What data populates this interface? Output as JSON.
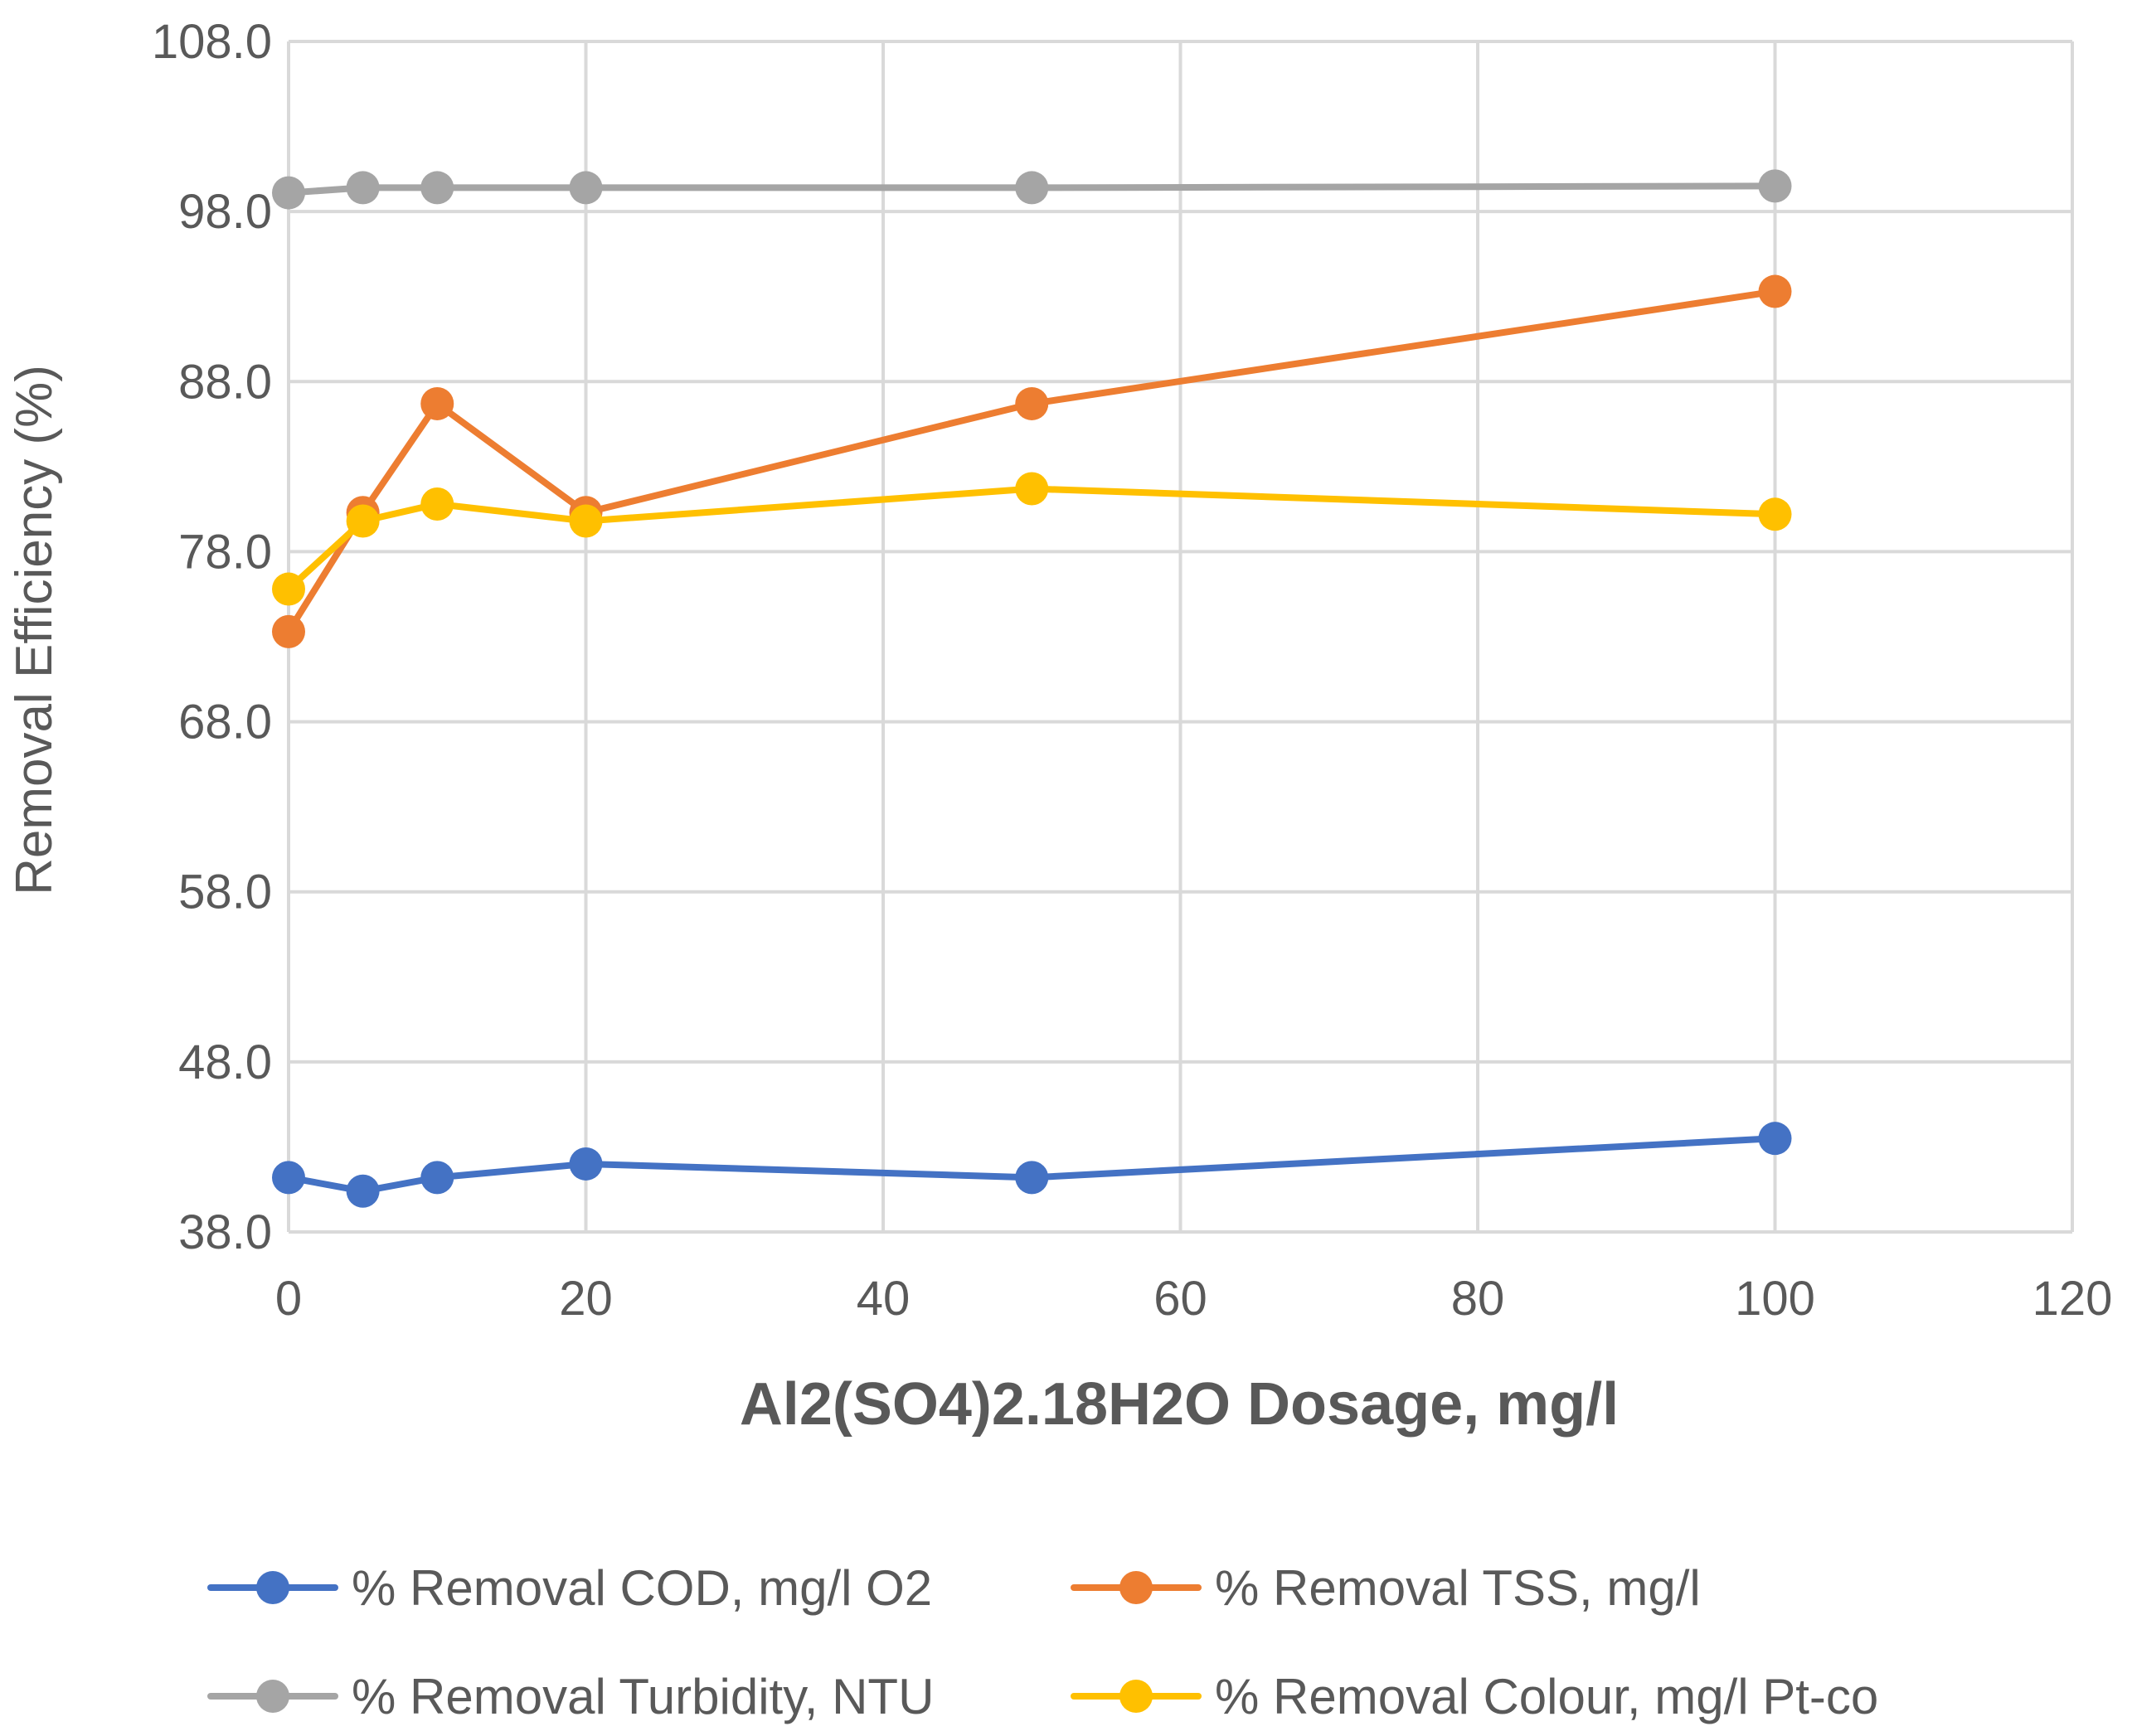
{
  "chart_data": {
    "type": "line",
    "title": "",
    "xlabel": "Al2(SO4)2.18H2O  Dosage, mg/l",
    "ylabel": "Removal Efficiency (%)",
    "xlim": [
      0,
      120
    ],
    "ylim": [
      38,
      108
    ],
    "xticks": [
      0,
      20,
      40,
      60,
      80,
      100,
      120
    ],
    "xtick_labels": [
      "0",
      "20",
      "40",
      "60",
      "80",
      "100",
      "120"
    ],
    "yticks": [
      38,
      48,
      58,
      68,
      78,
      88,
      98,
      108
    ],
    "ytick_labels": [
      "38.0",
      "48.0",
      "58.0",
      "68.0",
      "78.0",
      "88.0",
      "98.0",
      "108.0"
    ],
    "grid": true,
    "legend_position": "bottom",
    "x": [
      0,
      5,
      10,
      20,
      50,
      100
    ],
    "series": [
      {
        "name": "% Removal COD, mg/l O2",
        "color": "#4472C4",
        "values": [
          41.2,
          40.4,
          41.2,
          42.0,
          41.2,
          43.5
        ]
      },
      {
        "name": "% Removal TSS, mg/l",
        "color": "#ED7D31",
        "values": [
          73.3,
          80.3,
          86.7,
          80.3,
          86.7,
          93.3
        ]
      },
      {
        "name": "% Removal Turbidity, NTU",
        "color": "#A5A5A5",
        "values": [
          99.1,
          99.4,
          99.4,
          99.4,
          99.4,
          99.5
        ]
      },
      {
        "name": "% Removal Colour, mg/l Pt-co",
        "color": "#FFC000",
        "values": [
          75.8,
          79.8,
          80.8,
          79.8,
          81.7,
          80.2
        ]
      }
    ]
  }
}
